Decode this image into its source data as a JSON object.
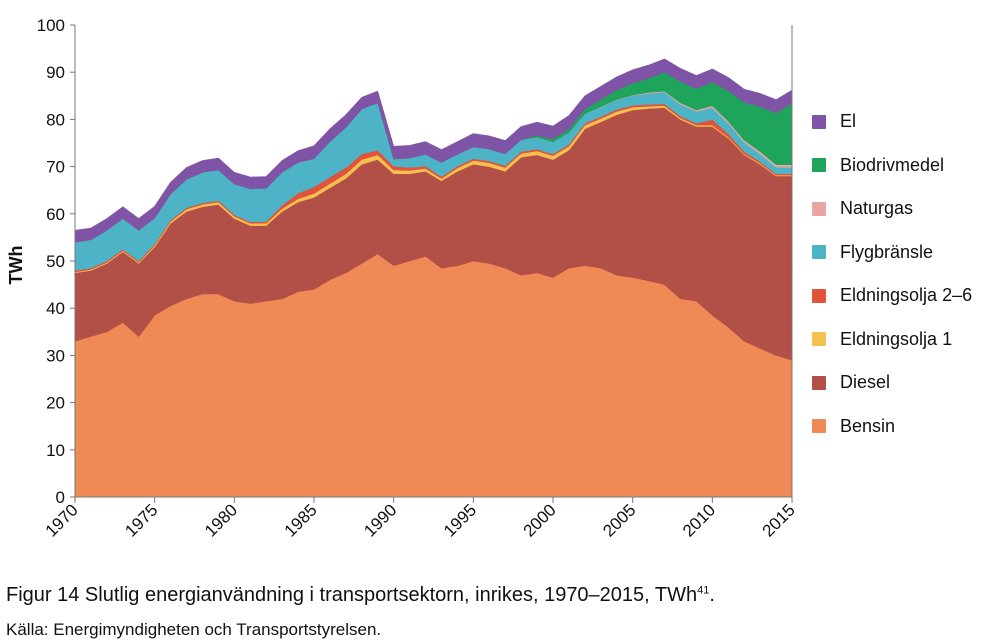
{
  "caption": {
    "text": "Figur 14 Slutlig energianvändning i transportsektorn, inrikes, 1970–2015, TWh",
    "sup": "41",
    "end": "."
  },
  "source": "Källa: Energimyndigheten och Transportstyrelsen.",
  "chart_data": {
    "type": "area",
    "stacked": true,
    "xlabel": "",
    "ylabel": "TWh",
    "xlim": [
      1970,
      2015
    ],
    "ylim": [
      0,
      100
    ],
    "x_ticks": [
      "1970",
      "1975",
      "1980",
      "1985",
      "1990",
      "1995",
      "2000",
      "2005",
      "2010",
      "2015"
    ],
    "y_ticks": [
      "0",
      "10",
      "20",
      "30",
      "40",
      "50",
      "60",
      "70",
      "80",
      "90",
      "100"
    ],
    "grid": false,
    "legend_position": "right",
    "x": [
      1970,
      1971,
      1972,
      1973,
      1974,
      1975,
      1976,
      1977,
      1978,
      1979,
      1980,
      1981,
      1982,
      1983,
      1984,
      1985,
      1986,
      1987,
      1988,
      1989,
      1990,
      1991,
      1992,
      1993,
      1994,
      1995,
      1996,
      1997,
      1998,
      1999,
      2000,
      2001,
      2002,
      2003,
      2004,
      2005,
      2006,
      2007,
      2008,
      2009,
      2010,
      2011,
      2012,
      2013,
      2014,
      2015
    ],
    "series": [
      {
        "name": "Bensin",
        "color": "#EF8A57",
        "values": [
          33,
          34,
          35,
          37,
          34,
          38.5,
          40.5,
          42,
          43,
          43,
          41.5,
          41,
          41.5,
          42,
          43.5,
          44,
          46,
          47.5,
          49.5,
          51.5,
          49,
          50,
          51,
          48.5,
          49,
          50,
          49.5,
          48.5,
          47,
          47.5,
          46.5,
          48.5,
          49,
          48.5,
          47,
          46.5,
          45.8,
          45,
          42,
          41.5,
          38.5,
          36,
          33,
          31.5,
          30,
          29
        ]
      },
      {
        "name": "Diesel",
        "color": "#B24F46",
        "values": [
          14.5,
          14,
          14.5,
          15,
          15.5,
          14.5,
          17.5,
          18.5,
          18.5,
          19,
          17.5,
          16.5,
          16,
          18.5,
          19,
          19.5,
          19.5,
          20,
          21,
          20,
          19.5,
          18.5,
          18,
          18.5,
          20,
          20.5,
          20.5,
          20.5,
          25,
          25,
          25,
          25,
          29,
          31,
          34,
          35.5,
          36.5,
          37.5,
          38,
          37,
          40,
          40,
          39.5,
          39,
          38,
          39
        ]
      },
      {
        "name": "Eldningsolja 1",
        "color": "#F6C04E",
        "values": [
          0.2,
          0.2,
          0.2,
          0.2,
          0.2,
          0.3,
          0.4,
          0.5,
          0.5,
          0.5,
          0.5,
          0.5,
          0.5,
          0.6,
          0.7,
          0.8,
          0.9,
          1,
          1,
          1,
          0.8,
          0.7,
          0.6,
          0.5,
          0.7,
          0.8,
          0.8,
          0.8,
          0.8,
          0.8,
          0.8,
          0.8,
          0.8,
          0.7,
          0.7,
          0.6,
          0.5,
          0.4,
          0.3,
          0.3,
          0.3,
          0.2,
          0.2,
          0.2,
          0.2,
          0.2
        ]
      },
      {
        "name": "Eldningsolja 2–6",
        "color": "#E0533D",
        "values": [
          0.3,
          0.3,
          0.3,
          0.3,
          0.3,
          0.3,
          0.3,
          0.3,
          0.3,
          0.3,
          0.3,
          0.3,
          0.4,
          0.7,
          1.2,
          1.4,
          1.4,
          1.3,
          1.2,
          1.0,
          0.8,
          0.6,
          0.5,
          0.4,
          0.4,
          0.4,
          0.4,
          0.4,
          0.4,
          0.4,
          0.4,
          0.4,
          0.4,
          0.4,
          0.4,
          0.4,
          0.4,
          0.4,
          0.4,
          0.4,
          1.2,
          0.8,
          0.5,
          0.4,
          0.3,
          0.3
        ]
      },
      {
        "name": "Flygbränsle",
        "color": "#4DB4C8",
        "values": [
          6,
          6,
          6.5,
          6.5,
          6.5,
          5.5,
          5.5,
          6,
          6.5,
          6.5,
          6.5,
          7,
          7,
          7,
          6.5,
          6,
          7.5,
          8.5,
          9.5,
          10,
          1.5,
          2,
          2.5,
          3,
          2.5,
          2.5,
          2.5,
          2.5,
          2.5,
          2.5,
          2.5,
          2.5,
          2,
          2,
          2,
          2.1,
          2.3,
          2.5,
          2.5,
          2.5,
          2.5,
          2.2,
          2,
          1.6,
          1.4,
          1.3
        ]
      },
      {
        "name": "Naturgas",
        "color": "#E8A5A2",
        "values": [
          0,
          0,
          0,
          0,
          0,
          0,
          0,
          0,
          0,
          0,
          0,
          0,
          0,
          0,
          0,
          0,
          0,
          0,
          0,
          0,
          0,
          0,
          0,
          0,
          0,
          0,
          0,
          0,
          0,
          0,
          0,
          0,
          0,
          0.1,
          0.1,
          0.1,
          0.2,
          0.2,
          0.3,
          0.3,
          0.4,
          0.4,
          0.4,
          0.5,
          0.5,
          0.6
        ]
      },
      {
        "name": "Biodrivmedel",
        "color": "#1FA55B",
        "values": [
          0,
          0,
          0,
          0,
          0,
          0,
          0,
          0,
          0,
          0,
          0,
          0,
          0,
          0,
          0,
          0,
          0,
          0,
          0,
          0,
          0,
          0,
          0,
          0,
          0,
          0,
          0,
          0,
          0,
          0.4,
          0.6,
          0.8,
          1,
          1.5,
          2,
          2.5,
          3,
          4,
          4.5,
          4.5,
          5,
          6.5,
          8,
          9.5,
          11,
          13
        ]
      },
      {
        "name": "El",
        "color": "#7F54A6",
        "values": [
          2.5,
          2.5,
          2.5,
          2.5,
          2.5,
          2.5,
          2.5,
          2.5,
          2.5,
          2.5,
          2.5,
          2.5,
          2.5,
          2.5,
          2.5,
          2.7,
          2.7,
          2.7,
          2.5,
          2.5,
          2.7,
          2.7,
          2.7,
          2.7,
          2.7,
          2.8,
          2.8,
          2.8,
          2.8,
          2.8,
          2.8,
          2.8,
          2.8,
          2.8,
          2.8,
          2.8,
          2.8,
          2.8,
          2.8,
          2.8,
          2.8,
          2.8,
          2.8,
          2.8,
          2.8,
          2.8
        ]
      }
    ]
  }
}
